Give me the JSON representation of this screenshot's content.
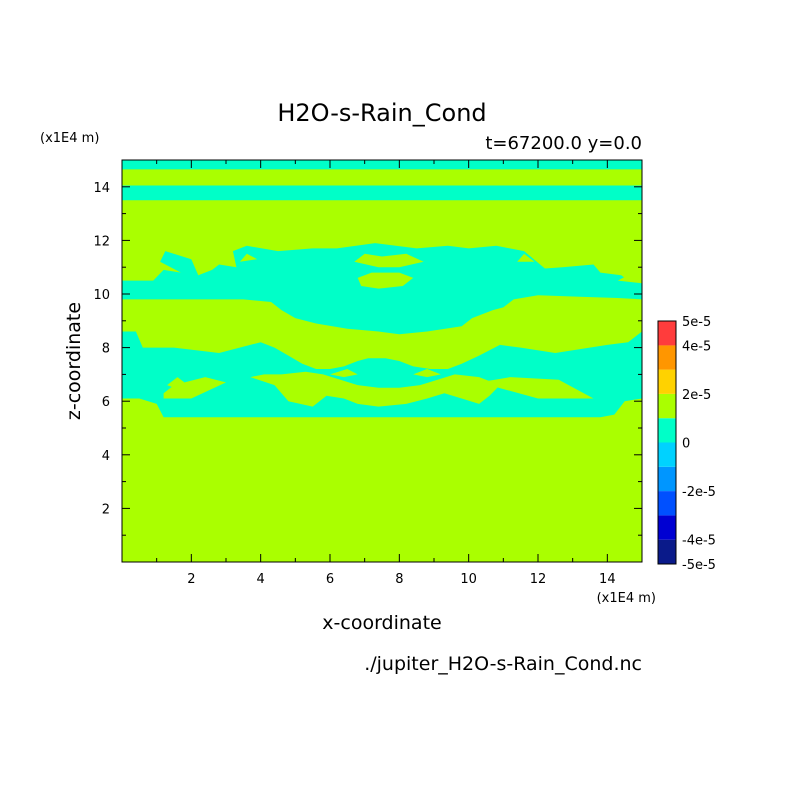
{
  "chart_data": {
    "type": "heatmap",
    "title": "H2O-s-Rain_Cond",
    "subtitle": "t=67200.0 y=0.0",
    "xlabel": "x-coordinate",
    "ylabel": "z-coordinate",
    "x_unit": "(x1E4 m)",
    "y_unit": "(x1E4 m)",
    "footer": "./jupiter_H2O-s-Rain_Cond.nc",
    "xlim": [
      0,
      15
    ],
    "ylim": [
      0,
      15
    ],
    "x_ticks": [
      2,
      4,
      6,
      8,
      10,
      12,
      14
    ],
    "y_ticks": [
      2,
      4,
      6,
      8,
      10,
      12,
      14
    ],
    "colorbar": {
      "levels": [
        -5e-05,
        -4e-05,
        -3e-05,
        -2e-05,
        -1e-05,
        0,
        1e-05,
        2e-05,
        3e-05,
        4e-05,
        5e-05
      ],
      "colors": [
        "#0a1a8a",
        "#0000d2",
        "#0050ff",
        "#0096ff",
        "#00d2ff",
        "#00ffc8",
        "#aaff00",
        "#ffd200",
        "#ff9600",
        "#ff5a28",
        "#ff3c3c"
      ],
      "tick_labels": [
        {
          "value": 5e-05,
          "label": "5e-5"
        },
        {
          "value": 4e-05,
          "label": "4e-5"
        },
        {
          "value": 2e-05,
          "label": "2e-5"
        },
        {
          "value": 0,
          "label": "0"
        },
        {
          "value": -2e-05,
          "label": "-2e-5"
        },
        {
          "value": -4e-05,
          "label": "-4e-5"
        },
        {
          "value": -5e-05,
          "label": "-5e-5"
        }
      ]
    },
    "field": {
      "background_value_class": "0 to 1e-5",
      "background_color": "#aaff00",
      "negative_color": "#00ffc8",
      "negative_regions": [
        [
          [
            0,
            15
          ],
          [
            15,
            15
          ],
          [
            15,
            14.65
          ],
          [
            0,
            14.65
          ]
        ],
        [
          [
            0,
            14.05
          ],
          [
            15,
            14.05
          ],
          [
            15,
            13.5
          ],
          [
            0,
            13.5
          ]
        ],
        [
          [
            0,
            10.5
          ],
          [
            0.9,
            10.5
          ],
          [
            1.2,
            10.9
          ],
          [
            1.7,
            10.8
          ],
          [
            1.1,
            11.2
          ],
          [
            1.25,
            11.6
          ],
          [
            2.0,
            11.3
          ],
          [
            2.2,
            10.7
          ],
          [
            2.6,
            10.9
          ],
          [
            2.8,
            11.1
          ],
          [
            3.3,
            11.0
          ],
          [
            3.2,
            11.6
          ],
          [
            3.6,
            11.8
          ],
          [
            4.5,
            11.6
          ],
          [
            5.5,
            11.7
          ],
          [
            6.2,
            11.7
          ],
          [
            7.3,
            11.9
          ],
          [
            8.5,
            11.7
          ],
          [
            9.4,
            11.8
          ],
          [
            10.0,
            11.7
          ],
          [
            10.8,
            11.8
          ],
          [
            11.6,
            11.6
          ],
          [
            12.2,
            10.95
          ],
          [
            12.7,
            11.0
          ],
          [
            13.6,
            11.1
          ],
          [
            13.8,
            10.8
          ],
          [
            14.4,
            10.7
          ],
          [
            14.5,
            10.6
          ],
          [
            15,
            10.5
          ],
          [
            15,
            9.8
          ],
          [
            14.3,
            9.85
          ],
          [
            13.2,
            9.9
          ],
          [
            12.0,
            9.95
          ],
          [
            11.3,
            9.8
          ],
          [
            11.0,
            9.5
          ],
          [
            10.7,
            9.4
          ],
          [
            10.1,
            9.1
          ],
          [
            9.8,
            8.8
          ],
          [
            8.8,
            8.6
          ],
          [
            8.0,
            8.5
          ],
          [
            7.4,
            8.6
          ],
          [
            6.5,
            8.7
          ],
          [
            5.6,
            8.9
          ],
          [
            5.0,
            9.1
          ],
          [
            4.6,
            9.4
          ],
          [
            4.3,
            9.7
          ],
          [
            3.5,
            9.8
          ],
          [
            2.2,
            9.8
          ],
          [
            1.0,
            9.8
          ],
          [
            0,
            9.8
          ]
        ],
        [
          [
            0,
            8.6
          ],
          [
            0.4,
            8.6
          ],
          [
            0.6,
            8.0
          ],
          [
            1.5,
            8.0
          ],
          [
            2.8,
            7.8
          ],
          [
            4.0,
            8.2
          ],
          [
            4.4,
            8.0
          ],
          [
            4.8,
            7.7
          ],
          [
            5.2,
            7.4
          ],
          [
            5.6,
            7.2
          ],
          [
            6.0,
            7.2
          ],
          [
            6.4,
            7.3
          ],
          [
            6.8,
            7.5
          ],
          [
            7.1,
            7.6
          ],
          [
            7.6,
            7.6
          ],
          [
            8.0,
            7.5
          ],
          [
            8.4,
            7.3
          ],
          [
            8.9,
            7.2
          ],
          [
            9.4,
            7.2
          ],
          [
            9.8,
            7.4
          ],
          [
            10.3,
            7.7
          ],
          [
            10.9,
            8.1
          ],
          [
            11.5,
            8.0
          ],
          [
            12.5,
            7.8
          ],
          [
            14.0,
            8.1
          ],
          [
            14.6,
            8.2
          ],
          [
            15,
            8.6
          ],
          [
            15,
            6.1
          ],
          [
            14.5,
            6.0
          ],
          [
            14.2,
            5.5
          ],
          [
            13.8,
            5.4
          ],
          [
            10.0,
            5.4
          ],
          [
            5.0,
            5.4
          ],
          [
            1.2,
            5.4
          ],
          [
            1.0,
            5.9
          ],
          [
            0.5,
            6.1
          ],
          [
            0,
            6.1
          ]
        ]
      ],
      "positive_islands": [
        [
          [
            1.2,
            6.1
          ],
          [
            2.0,
            6.1
          ],
          [
            3.0,
            6.7
          ],
          [
            2.4,
            6.9
          ],
          [
            1.5,
            6.6
          ],
          [
            1.2,
            6.3
          ]
        ],
        [
          [
            10.3,
            6.7
          ],
          [
            12.0,
            6.1
          ],
          [
            13.6,
            6.1
          ],
          [
            12.6,
            6.8
          ],
          [
            11.2,
            6.9
          ]
        ],
        [
          [
            1.3,
            6.6
          ],
          [
            1.6,
            6.9
          ],
          [
            1.8,
            6.7
          ],
          [
            1.5,
            6.5
          ]
        ],
        [
          [
            3.7,
            6.9
          ],
          [
            4.4,
            6.6
          ],
          [
            4.8,
            6.0
          ],
          [
            5.5,
            5.8
          ],
          [
            5.9,
            6.2
          ],
          [
            6.4,
            6.1
          ],
          [
            6.8,
            5.9
          ],
          [
            7.4,
            5.8
          ],
          [
            8.2,
            5.9
          ],
          [
            8.8,
            6.1
          ],
          [
            9.3,
            6.3
          ],
          [
            9.8,
            6.1
          ],
          [
            10.3,
            5.9
          ],
          [
            10.6,
            6.2
          ],
          [
            10.9,
            6.6
          ],
          [
            10.3,
            6.9
          ],
          [
            9.6,
            7.0
          ],
          [
            9.1,
            6.8
          ],
          [
            8.6,
            6.6
          ],
          [
            8.0,
            6.5
          ],
          [
            7.4,
            6.5
          ],
          [
            6.8,
            6.6
          ],
          [
            6.3,
            6.8
          ],
          [
            5.8,
            7.0
          ],
          [
            5.3,
            7.1
          ],
          [
            4.6,
            7.0
          ],
          [
            4.1,
            7.0
          ]
        ],
        [
          [
            6.0,
            7.0
          ],
          [
            6.5,
            7.2
          ],
          [
            6.8,
            7.0
          ],
          [
            6.4,
            6.9
          ]
        ],
        [
          [
            8.4,
            7.0
          ],
          [
            8.8,
            7.2
          ],
          [
            9.2,
            7.0
          ],
          [
            8.8,
            6.9
          ]
        ],
        [
          [
            6.7,
            11.2
          ],
          [
            7.0,
            11.5
          ],
          [
            7.5,
            11.4
          ],
          [
            8.2,
            11.5
          ],
          [
            8.7,
            11.2
          ],
          [
            8.0,
            11.0
          ],
          [
            7.4,
            11.0
          ]
        ],
        [
          [
            6.8,
            10.6
          ],
          [
            7.2,
            10.8
          ],
          [
            8.0,
            10.8
          ],
          [
            8.4,
            10.6
          ],
          [
            8.1,
            10.3
          ],
          [
            7.4,
            10.2
          ],
          [
            6.9,
            10.3
          ]
        ],
        [
          [
            3.4,
            11.2
          ],
          [
            3.6,
            11.5
          ],
          [
            3.9,
            11.3
          ]
        ],
        [
          [
            11.4,
            11.2
          ],
          [
            11.6,
            11.5
          ],
          [
            11.9,
            11.2
          ]
        ],
        [
          [
            14.3,
            10.5
          ],
          [
            14.6,
            10.7
          ],
          [
            15,
            10.6
          ],
          [
            15,
            10.4
          ]
        ]
      ]
    }
  }
}
